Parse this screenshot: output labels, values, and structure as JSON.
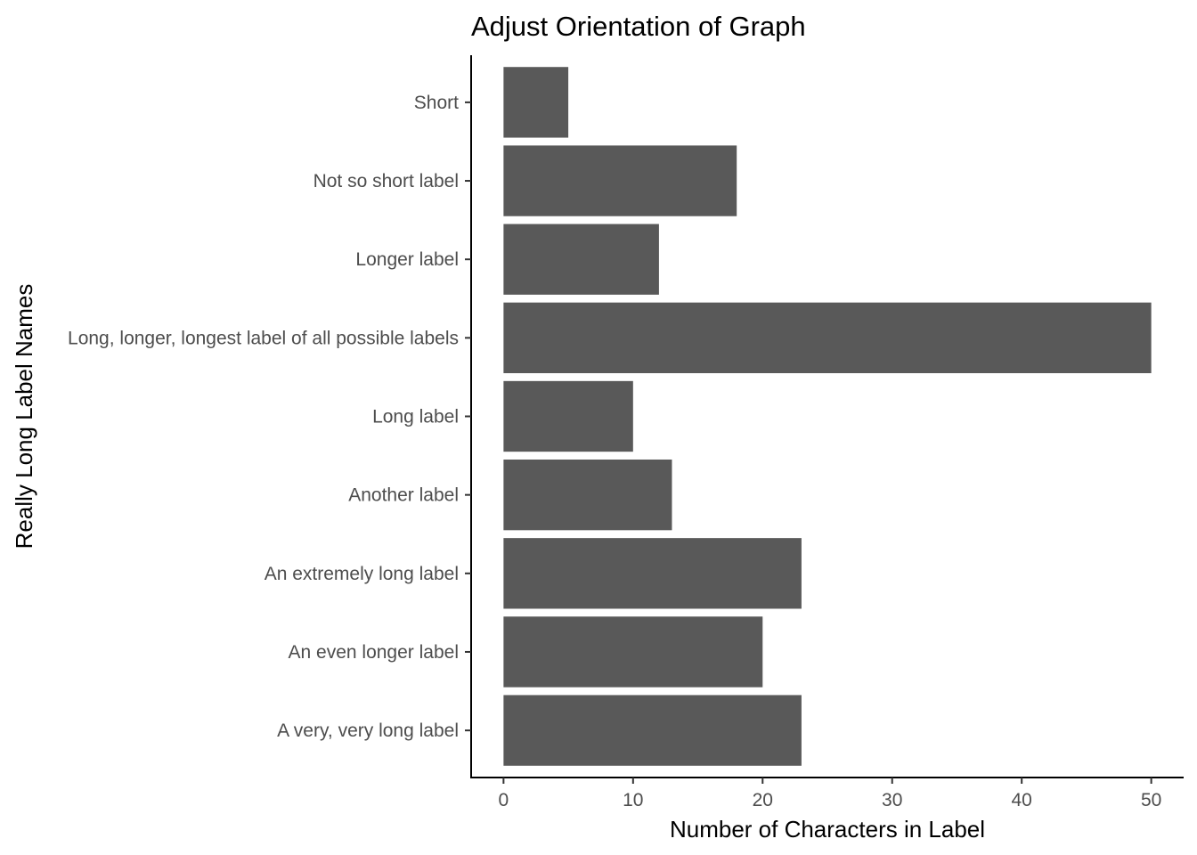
{
  "chart_data": {
    "type": "bar",
    "orientation": "horizontal",
    "title": "Adjust Orientation of Graph",
    "xlabel": "Number of Characters in Label",
    "ylabel": "Really Long Label Names",
    "categories": [
      "Short",
      "Not so short label",
      "Longer label",
      "Long, longer, longest label of all possible labels",
      "Long label",
      "Another label",
      "An extremely long label",
      "An even longer label",
      "A very, very long label"
    ],
    "values": [
      5,
      18,
      12,
      50,
      10,
      13,
      23,
      20,
      23
    ],
    "xlim": [
      -2.5,
      52.5
    ],
    "xticks": [
      0,
      10,
      20,
      30,
      40,
      50
    ],
    "grid": false,
    "legend": "none",
    "bar_color": "#595959"
  }
}
